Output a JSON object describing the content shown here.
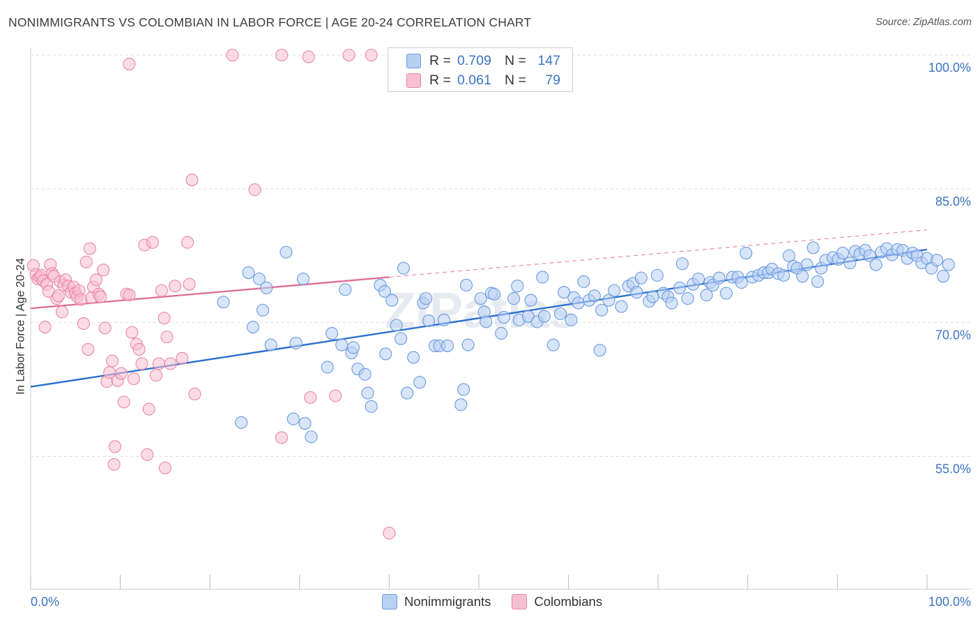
{
  "title": "NONIMMIGRANTS VS COLOMBIAN IN LABOR FORCE | AGE 20-24 CORRELATION CHART",
  "source": "Source: ZipAtlas.com",
  "watermark": "ZIPatlas",
  "legend": {
    "r_label": "R =",
    "n_label": "N =",
    "rows": [
      {
        "r": "0.709",
        "n": "147",
        "fill": "#b8d0f2",
        "stroke": "#6a9ae0"
      },
      {
        "r": "0.061",
        "n": "79",
        "fill": "#f7bfd2",
        "stroke": "#e886a8"
      }
    ]
  },
  "bottom_legend": [
    {
      "label": "Nonimmigrants",
      "fill": "#b8d0f2",
      "stroke": "#6a9ae0"
    },
    {
      "label": "Colombians",
      "fill": "#f7bfd2",
      "stroke": "#e886a8"
    }
  ],
  "chart_data": {
    "type": "scatter",
    "xlabel": "",
    "ylabel": "In Labor Force | Age 20-24",
    "x_tick_labels": [
      "0.0%",
      "100.0%"
    ],
    "y_tick_labels": [
      "100.0%",
      "85.0%",
      "70.0%",
      "55.0%"
    ],
    "xlim": [
      0,
      100
    ],
    "ylim": [
      41,
      106
    ],
    "grid": true,
    "series": [
      {
        "name": "Nonimmigrants",
        "color": "#6a9ae0",
        "fill": "#b8d0f2",
        "trend": {
          "x0": 0,
          "y0": 62.8,
          "x1": 100,
          "y1": 78.2,
          "color": "#2a6fd0"
        },
        "points": [
          [
            21.5,
            72.3
          ],
          [
            23.5,
            58.8
          ],
          [
            24.3,
            75.6
          ],
          [
            24.8,
            69.5
          ],
          [
            25.5,
            74.9
          ],
          [
            25.9,
            71.4
          ],
          [
            26.3,
            73.9
          ],
          [
            26.8,
            67.5
          ],
          [
            28.5,
            77.9
          ],
          [
            29.3,
            59.2
          ],
          [
            29.6,
            67.7
          ],
          [
            30.4,
            74.9
          ],
          [
            30.6,
            58.7
          ],
          [
            31.3,
            57.2
          ],
          [
            33.1,
            65.0
          ],
          [
            33.6,
            68.8
          ],
          [
            34.7,
            67.5
          ],
          [
            35.1,
            73.7
          ],
          [
            35.8,
            66.6
          ],
          [
            36.0,
            67.2
          ],
          [
            36.5,
            64.8
          ],
          [
            37.3,
            64.2
          ],
          [
            37.6,
            62.1
          ],
          [
            38.0,
            60.6
          ],
          [
            39.0,
            74.2
          ],
          [
            39.5,
            73.5
          ],
          [
            39.6,
            66.5
          ],
          [
            40.3,
            72.5
          ],
          [
            40.8,
            69.7
          ],
          [
            41.3,
            68.2
          ],
          [
            41.6,
            76.1
          ],
          [
            42.0,
            62.1
          ],
          [
            42.7,
            66.1
          ],
          [
            43.4,
            63.3
          ],
          [
            43.8,
            72.2
          ],
          [
            44.1,
            72.7
          ],
          [
            44.4,
            70.2
          ],
          [
            45.1,
            67.4
          ],
          [
            45.6,
            67.4
          ],
          [
            46.1,
            70.3
          ],
          [
            46.5,
            67.4
          ],
          [
            48.0,
            60.8
          ],
          [
            48.3,
            62.5
          ],
          [
            48.6,
            74.2
          ],
          [
            48.8,
            67.5
          ],
          [
            50.2,
            72.7
          ],
          [
            50.6,
            71.2
          ],
          [
            50.8,
            70.1
          ],
          [
            51.4,
            73.3
          ],
          [
            51.7,
            73.2
          ],
          [
            52.5,
            68.8
          ],
          [
            52.8,
            70.6
          ],
          [
            53.9,
            72.7
          ],
          [
            54.3,
            74.1
          ],
          [
            54.5,
            70.3
          ],
          [
            55.5,
            70.7
          ],
          [
            55.8,
            72.5
          ],
          [
            56.5,
            70.1
          ],
          [
            57.1,
            75.1
          ],
          [
            57.3,
            70.7
          ],
          [
            58.3,
            67.5
          ],
          [
            59.1,
            71.0
          ],
          [
            59.5,
            73.4
          ],
          [
            60.3,
            70.3
          ],
          [
            60.6,
            72.8
          ],
          [
            61.1,
            72.2
          ],
          [
            61.7,
            74.6
          ],
          [
            62.3,
            72.5
          ],
          [
            62.9,
            73.0
          ],
          [
            63.5,
            66.9
          ],
          [
            63.7,
            71.4
          ],
          [
            64.5,
            72.5
          ],
          [
            65.1,
            73.6
          ],
          [
            65.9,
            71.8
          ],
          [
            66.7,
            74.1
          ],
          [
            67.2,
            74.4
          ],
          [
            67.6,
            73.4
          ],
          [
            68.1,
            75.0
          ],
          [
            69.0,
            72.4
          ],
          [
            69.4,
            72.9
          ],
          [
            69.9,
            75.3
          ],
          [
            70.6,
            73.3
          ],
          [
            71.1,
            72.9
          ],
          [
            71.5,
            72.2
          ],
          [
            72.4,
            73.9
          ],
          [
            72.7,
            76.6
          ],
          [
            73.3,
            72.7
          ],
          [
            73.9,
            74.3
          ],
          [
            74.5,
            74.9
          ],
          [
            75.4,
            73.1
          ],
          [
            75.8,
            74.5
          ],
          [
            76.1,
            74.2
          ],
          [
            76.8,
            75.0
          ],
          [
            77.6,
            73.3
          ],
          [
            78.3,
            75.1
          ],
          [
            78.9,
            75.1
          ],
          [
            79.3,
            74.5
          ],
          [
            79.8,
            77.8
          ],
          [
            80.5,
            75.1
          ],
          [
            81.2,
            75.3
          ],
          [
            81.8,
            75.6
          ],
          [
            82.3,
            75.6
          ],
          [
            82.7,
            76.0
          ],
          [
            83.4,
            75.5
          ],
          [
            84.0,
            75.3
          ],
          [
            84.6,
            77.5
          ],
          [
            85.1,
            76.3
          ],
          [
            85.5,
            76.1
          ],
          [
            86.1,
            75.2
          ],
          [
            86.6,
            76.5
          ],
          [
            87.3,
            78.4
          ],
          [
            87.8,
            74.6
          ],
          [
            88.2,
            76.1
          ],
          [
            88.7,
            77.0
          ],
          [
            89.5,
            77.3
          ],
          [
            90.1,
            77.1
          ],
          [
            90.6,
            77.8
          ],
          [
            91.4,
            76.7
          ],
          [
            92.0,
            78.0
          ],
          [
            92.5,
            77.7
          ],
          [
            93.1,
            78.1
          ],
          [
            93.6,
            77.5
          ],
          [
            94.3,
            76.5
          ],
          [
            94.9,
            77.9
          ],
          [
            95.5,
            78.3
          ],
          [
            96.1,
            77.6
          ],
          [
            96.7,
            78.2
          ],
          [
            97.3,
            78.1
          ],
          [
            97.8,
            77.2
          ],
          [
            98.4,
            77.8
          ],
          [
            98.9,
            77.5
          ],
          [
            99.4,
            76.7
          ],
          [
            100.0,
            77.2
          ],
          [
            100.5,
            76.1
          ],
          [
            101.1,
            77.0
          ],
          [
            101.8,
            75.2
          ],
          [
            102.4,
            76.5
          ]
        ]
      },
      {
        "name": "Colombians",
        "color": "#e886a8",
        "fill": "#f7bfd2",
        "trend": {
          "x0": 0,
          "y0": 71.6,
          "x1": 40,
          "y1": 75.1,
          "color": "#e0709a"
        },
        "trend_dashed": {
          "x0": 40,
          "y0": 75.1,
          "x1": 100,
          "y1": 80.4
        },
        "points": [
          [
            0.3,
            76.4
          ],
          [
            0.6,
            75.4
          ],
          [
            0.8,
            74.9
          ],
          [
            1.0,
            75.1
          ],
          [
            1.2,
            75.3
          ],
          [
            1.4,
            74.7
          ],
          [
            1.6,
            69.5
          ],
          [
            1.8,
            74.3
          ],
          [
            2.0,
            73.5
          ],
          [
            2.2,
            76.5
          ],
          [
            2.4,
            75.5
          ],
          [
            2.6,
            75.2
          ],
          [
            2.9,
            72.7
          ],
          [
            3.1,
            73.0
          ],
          [
            3.3,
            74.6
          ],
          [
            3.5,
            71.2
          ],
          [
            3.7,
            74.2
          ],
          [
            3.9,
            74.8
          ],
          [
            4.2,
            74.1
          ],
          [
            4.5,
            73.4
          ],
          [
            4.8,
            74.0
          ],
          [
            5.0,
            73.3
          ],
          [
            5.2,
            72.9
          ],
          [
            5.4,
            73.6
          ],
          [
            5.6,
            72.6
          ],
          [
            5.9,
            69.9
          ],
          [
            6.2,
            76.8
          ],
          [
            6.4,
            67.0
          ],
          [
            6.6,
            78.3
          ],
          [
            6.8,
            72.8
          ],
          [
            7.0,
            74.0
          ],
          [
            7.3,
            74.8
          ],
          [
            7.6,
            73.2
          ],
          [
            7.8,
            72.9
          ],
          [
            8.1,
            75.9
          ],
          [
            8.3,
            69.4
          ],
          [
            8.5,
            63.4
          ],
          [
            8.8,
            64.4
          ],
          [
            9.1,
            65.7
          ],
          [
            9.4,
            56.1
          ],
          [
            9.7,
            63.5
          ],
          [
            10.1,
            64.3
          ],
          [
            10.4,
            61.1
          ],
          [
            10.7,
            73.2
          ],
          [
            11.0,
            73.1
          ],
          [
            11.3,
            68.9
          ],
          [
            11.5,
            63.7
          ],
          [
            11.8,
            67.6
          ],
          [
            12.1,
            67.0
          ],
          [
            12.4,
            65.4
          ],
          [
            12.7,
            78.7
          ],
          [
            13.0,
            55.2
          ],
          [
            13.2,
            60.3
          ],
          [
            13.6,
            79.0
          ],
          [
            14.0,
            64.1
          ],
          [
            14.3,
            65.4
          ],
          [
            14.6,
            73.6
          ],
          [
            14.9,
            70.5
          ],
          [
            15.2,
            68.4
          ],
          [
            15.6,
            65.4
          ],
          [
            16.1,
            74.1
          ],
          [
            16.9,
            66.0
          ],
          [
            17.5,
            79.0
          ],
          [
            17.7,
            74.3
          ],
          [
            18.3,
            62.0
          ],
          [
            11.0,
            99.0
          ],
          [
            15.0,
            53.7
          ],
          [
            18.0,
            86.0
          ],
          [
            25.0,
            84.9
          ],
          [
            22.5,
            100.0
          ],
          [
            28.0,
            100.0
          ],
          [
            31.0,
            99.8
          ],
          [
            35.5,
            100.0
          ],
          [
            38.0,
            100.0
          ],
          [
            28.0,
            57.1
          ],
          [
            34.0,
            61.8
          ],
          [
            40.0,
            46.4
          ],
          [
            9.3,
            54.1
          ],
          [
            31.2,
            61.6
          ]
        ]
      }
    ]
  }
}
